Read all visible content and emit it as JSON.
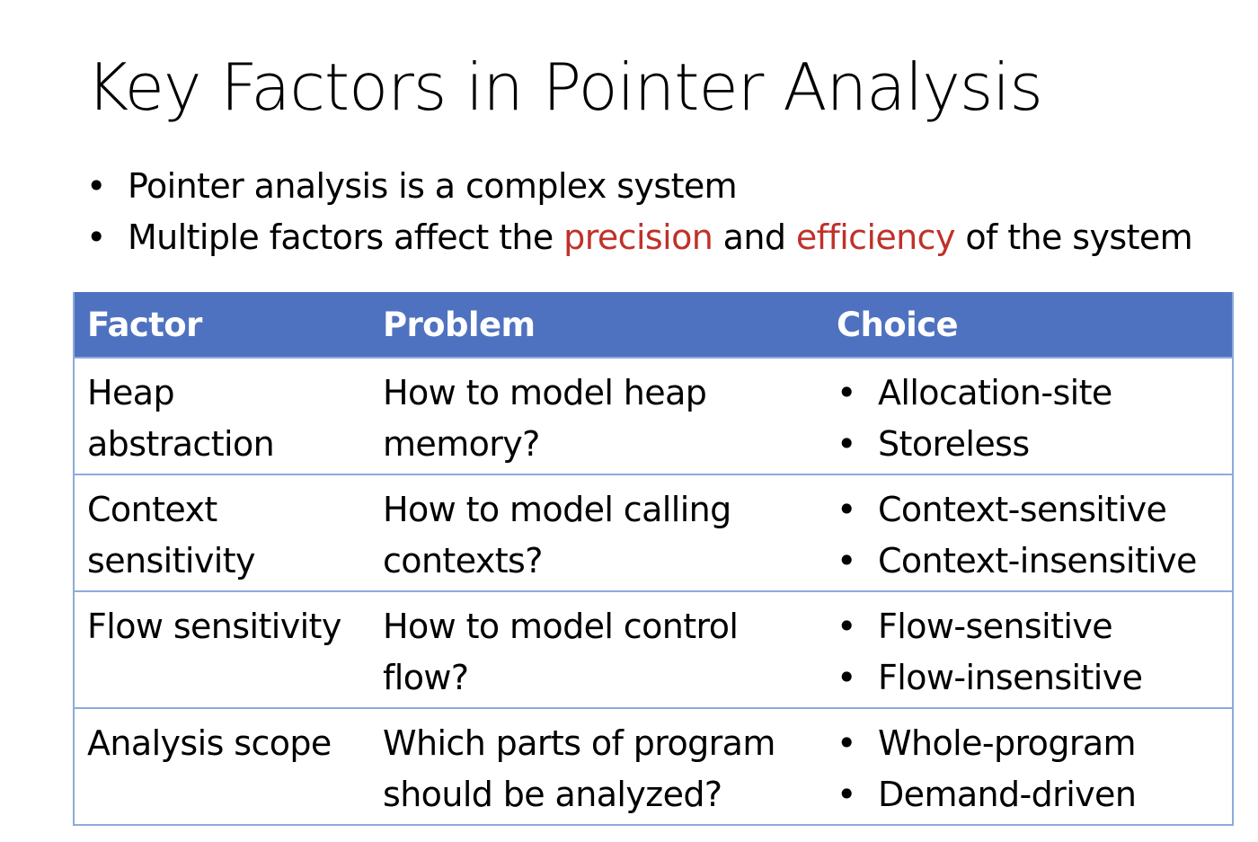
{
  "title": "Key Factors in Pointer Analysis",
  "bullets": [
    {
      "text": "Pointer analysis is a complex system"
    },
    {
      "prefix": "Multiple factors affect the ",
      "accent1": "precision",
      "middle": " and ",
      "accent2": "efficiency",
      "suffix": " of the system"
    }
  ],
  "colors": {
    "header_bg": "#4f72c0",
    "accent": "#c0312a",
    "border": "#8eaadb"
  },
  "table": {
    "headers": [
      "Factor",
      "Problem",
      "Choice"
    ],
    "rows": [
      {
        "factor": "Heap abstraction",
        "problem": "How to model heap memory?",
        "choices": [
          "Allocation-site",
          "Storeless"
        ]
      },
      {
        "factor": "Context sensitivity",
        "problem": "How to model calling contexts?",
        "choices": [
          "Context-sensitive",
          "Context-insensitive"
        ]
      },
      {
        "factor": "Flow sensitivity",
        "problem": "How to model control flow?",
        "choices": [
          "Flow-sensitive",
          "Flow-insensitive"
        ]
      },
      {
        "factor": "Analysis scope",
        "problem": "Which parts of program should be analyzed?",
        "choices": [
          "Whole-program",
          "Demand-driven"
        ]
      }
    ]
  }
}
